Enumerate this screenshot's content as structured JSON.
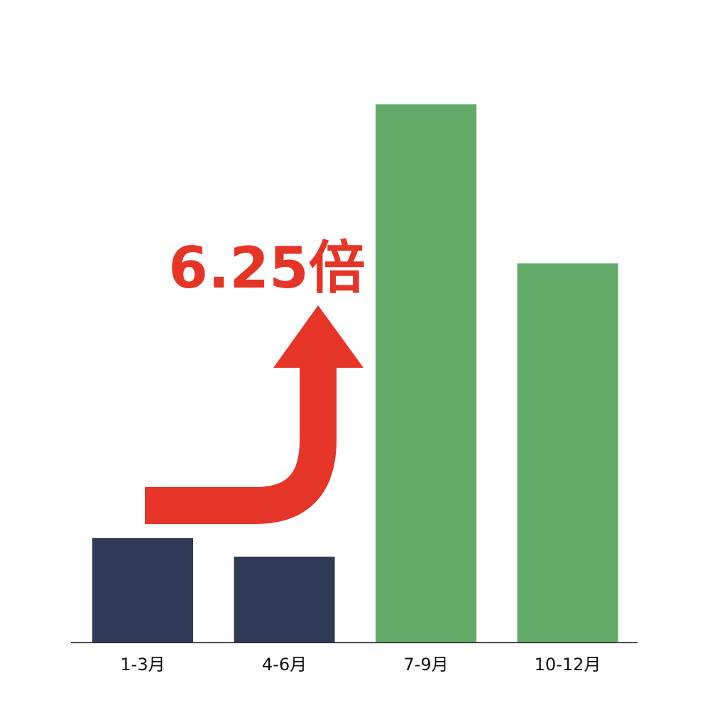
{
  "chart_data": {
    "type": "bar",
    "title": "",
    "xlabel": "",
    "ylabel": "",
    "categories": [
      "1-3月",
      "4-6月",
      "7-9月",
      "10-12月"
    ],
    "values": [
      147,
      121,
      758,
      534
    ],
    "bar_colors": [
      "#2e3a56",
      "#2e3a56",
      "#64ab69",
      "#64ab69"
    ],
    "ylim": [
      0,
      800
    ],
    "grid": false,
    "legend": "none",
    "annotation": {
      "text": "6.25倍",
      "color": "#e63528"
    }
  }
}
